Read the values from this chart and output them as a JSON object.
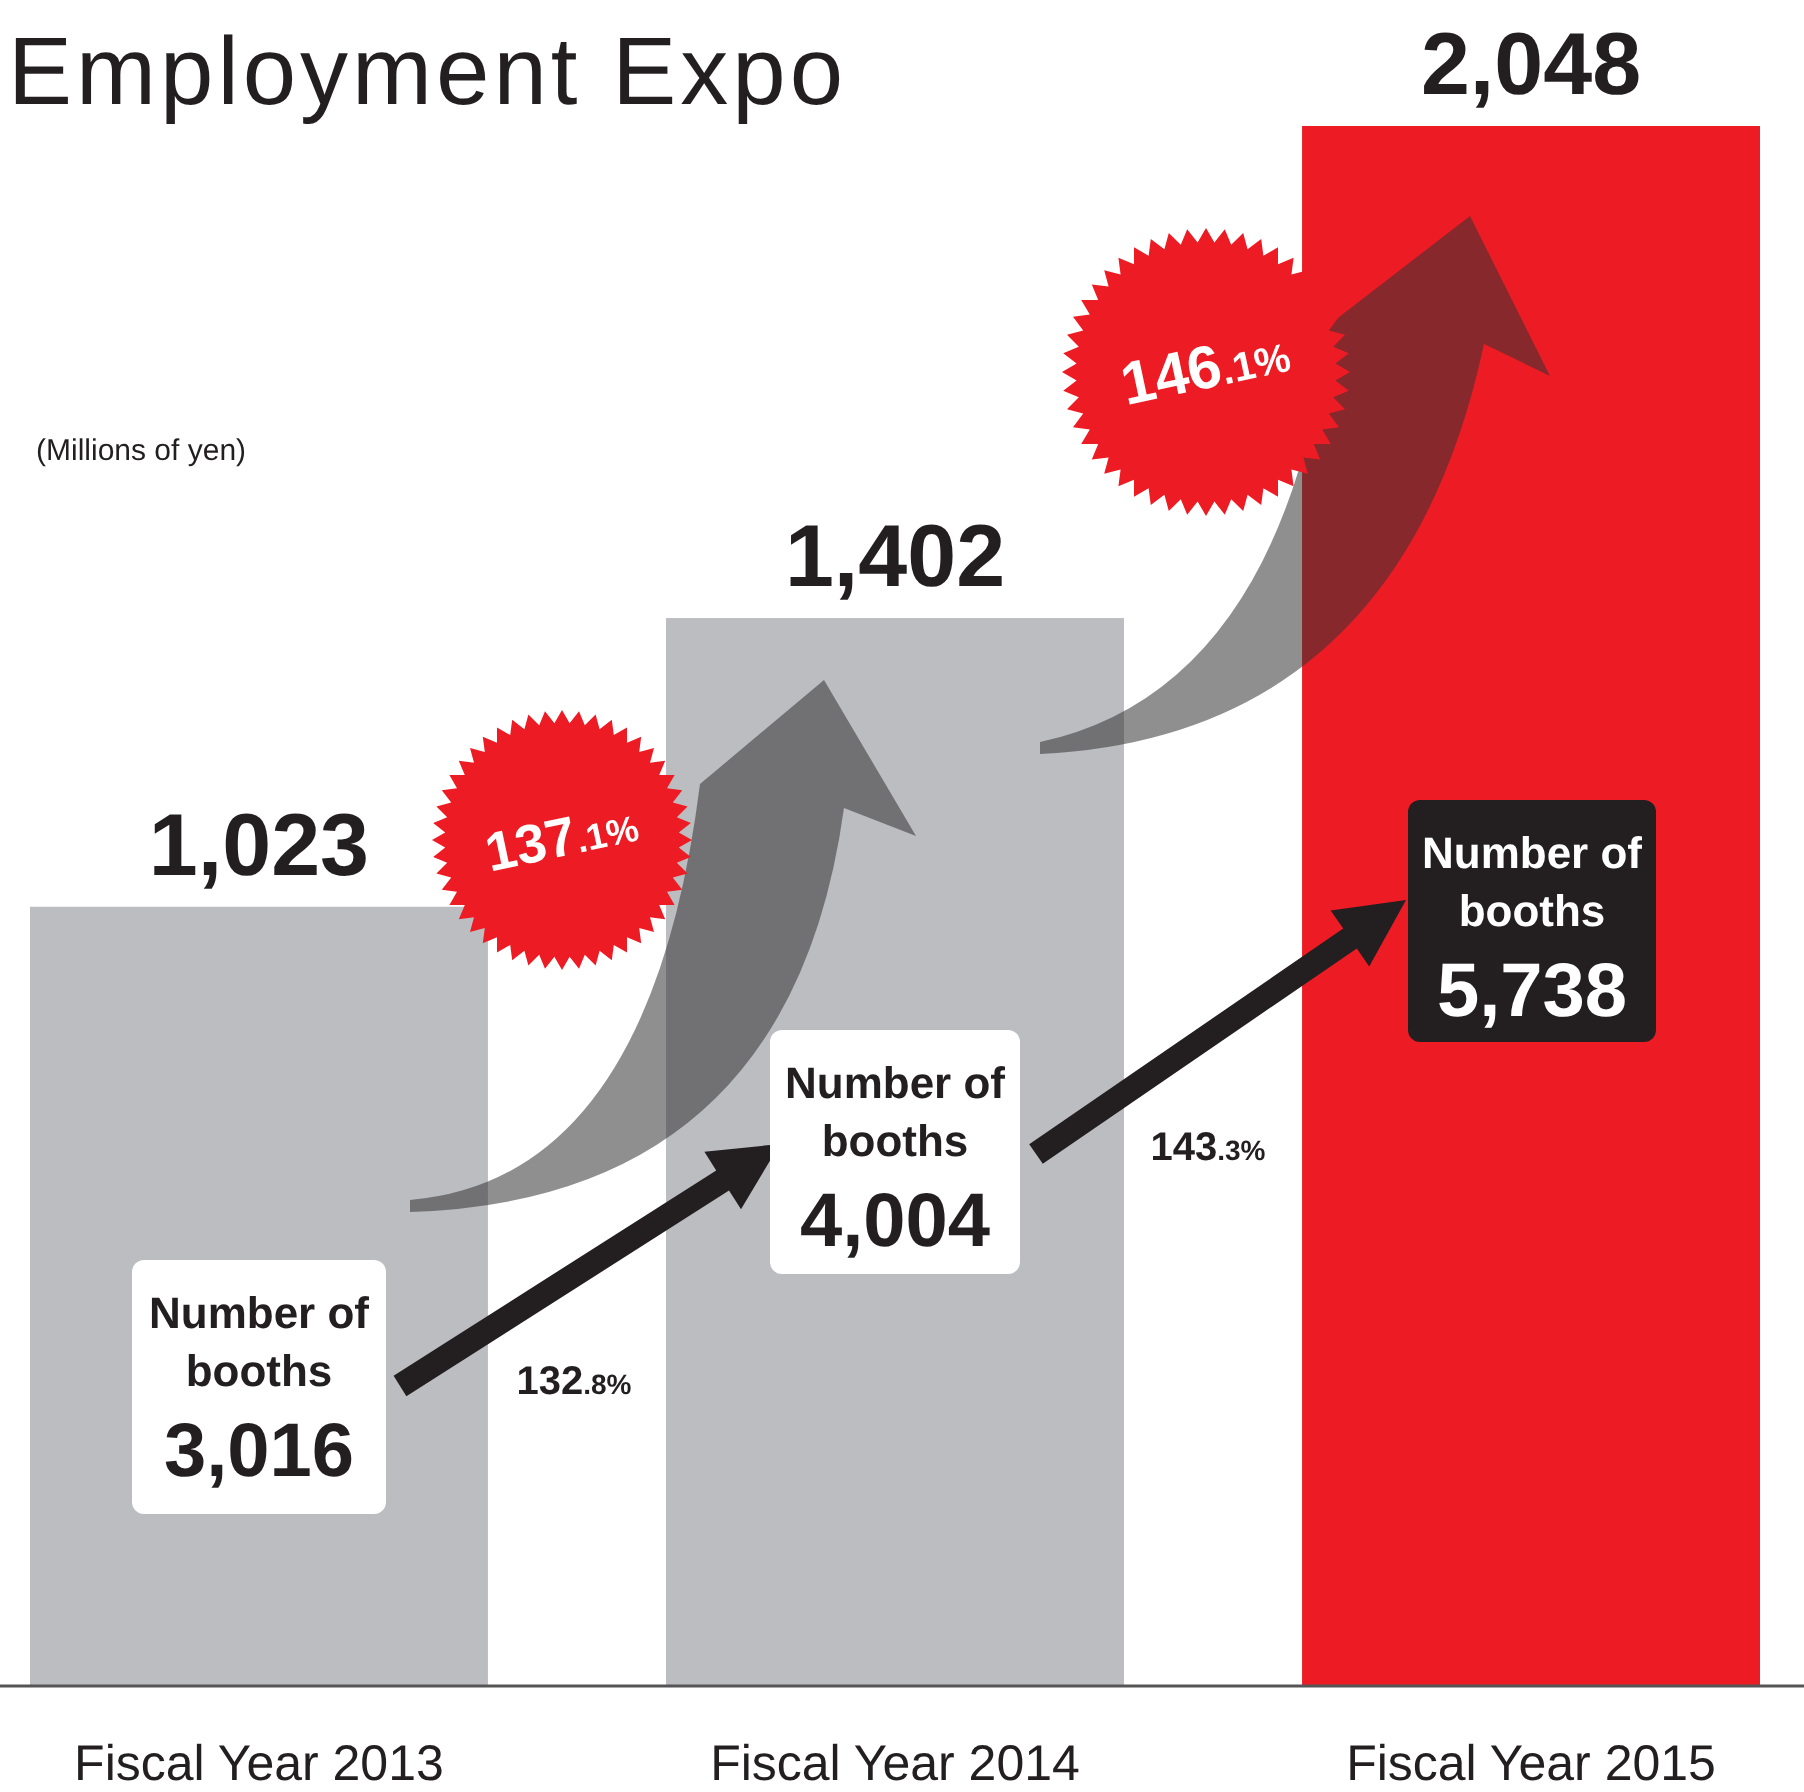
{
  "chart_data": {
    "type": "bar",
    "title": "Employment Expo",
    "categories": [
      "Fiscal Year 2013",
      "Fiscal Year 2014",
      "Fiscal Year 2015"
    ],
    "values": [
      1023,
      1402,
      2048
    ],
    "colors": [
      "#bcbdc0",
      "#bcbdc0",
      "#ed1c24"
    ],
    "value_labels": [
      "1,023",
      "1,402",
      "2,048"
    ],
    "annotations": [
      "(Millions of yen)",
      "137.1%",
      "146.1%",
      "Number of booths 3,016",
      "Number of booths 4,004",
      "Number of booths 5,738",
      "132.8%",
      "143.3%"
    ]
  }
}
